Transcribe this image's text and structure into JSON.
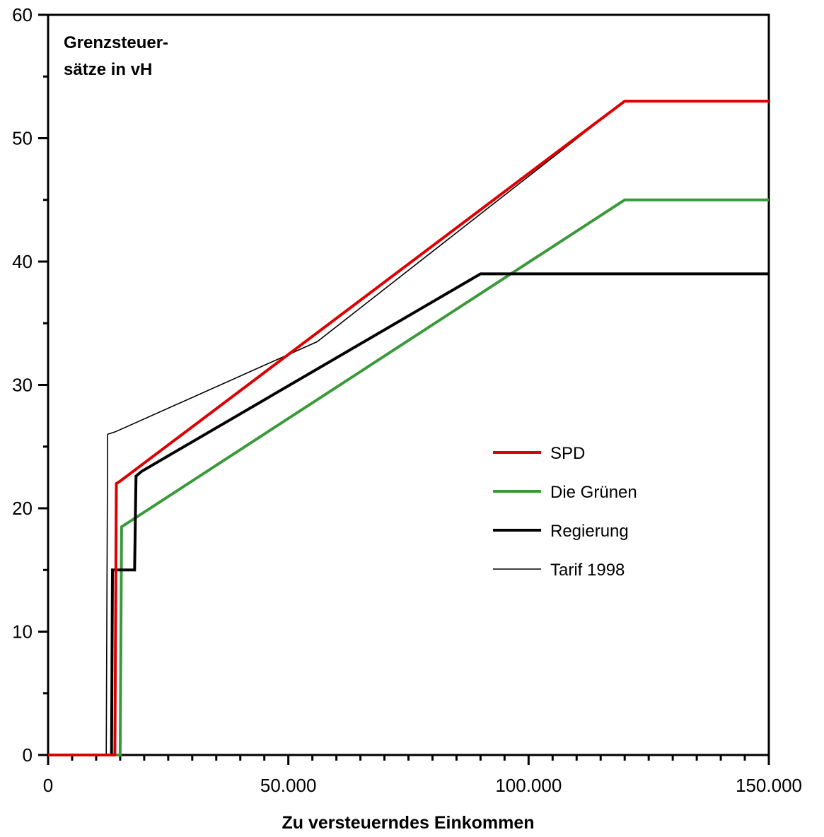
{
  "chart_data": {
    "type": "line",
    "title": "",
    "ylabel": [
      "Grenzsteuer-",
      "sätze in vH"
    ],
    "xlabel": "Zu versteuerndes Einkommen",
    "xlim": [
      0,
      150000
    ],
    "ylim": [
      0,
      60
    ],
    "x_ticks": [
      0,
      50000,
      100000,
      150000
    ],
    "x_tick_labels": [
      "0",
      "50.000",
      "100.000",
      "150.000"
    ],
    "y_ticks": [
      0,
      10,
      20,
      30,
      40,
      50,
      60
    ],
    "y_tick_labels": [
      "0",
      "10",
      "20",
      "30",
      "40",
      "50",
      "60"
    ],
    "grid": false,
    "legend_position": "right",
    "series": [
      {
        "name": "SPD",
        "color": "#dd0000",
        "points": [
          [
            0,
            0
          ],
          [
            13900,
            0
          ],
          [
            14200,
            22
          ],
          [
            15000,
            22.2
          ],
          [
            120000,
            53
          ],
          [
            150000,
            53
          ]
        ]
      },
      {
        "name": "Die Grünen",
        "color": "#3a9a3a",
        "points": [
          [
            0,
            0
          ],
          [
            15000,
            0
          ],
          [
            15300,
            18.5
          ],
          [
            16500,
            18.8
          ],
          [
            120000,
            45
          ],
          [
            150000,
            45
          ]
        ]
      },
      {
        "name": "Regierung",
        "color": "#000000",
        "points": [
          [
            0,
            0
          ],
          [
            13200,
            0
          ],
          [
            13400,
            15
          ],
          [
            18000,
            15
          ],
          [
            18300,
            22.6
          ],
          [
            19500,
            23
          ],
          [
            90000,
            39
          ],
          [
            150000,
            39
          ]
        ]
      },
      {
        "name": "Tarif 1998",
        "color": "#000000",
        "points": [
          [
            0,
            0
          ],
          [
            12100,
            0
          ],
          [
            12400,
            26
          ],
          [
            14000,
            26.2
          ],
          [
            56000,
            33.5
          ],
          [
            120000,
            53
          ],
          [
            150000,
            53
          ]
        ]
      }
    ]
  }
}
